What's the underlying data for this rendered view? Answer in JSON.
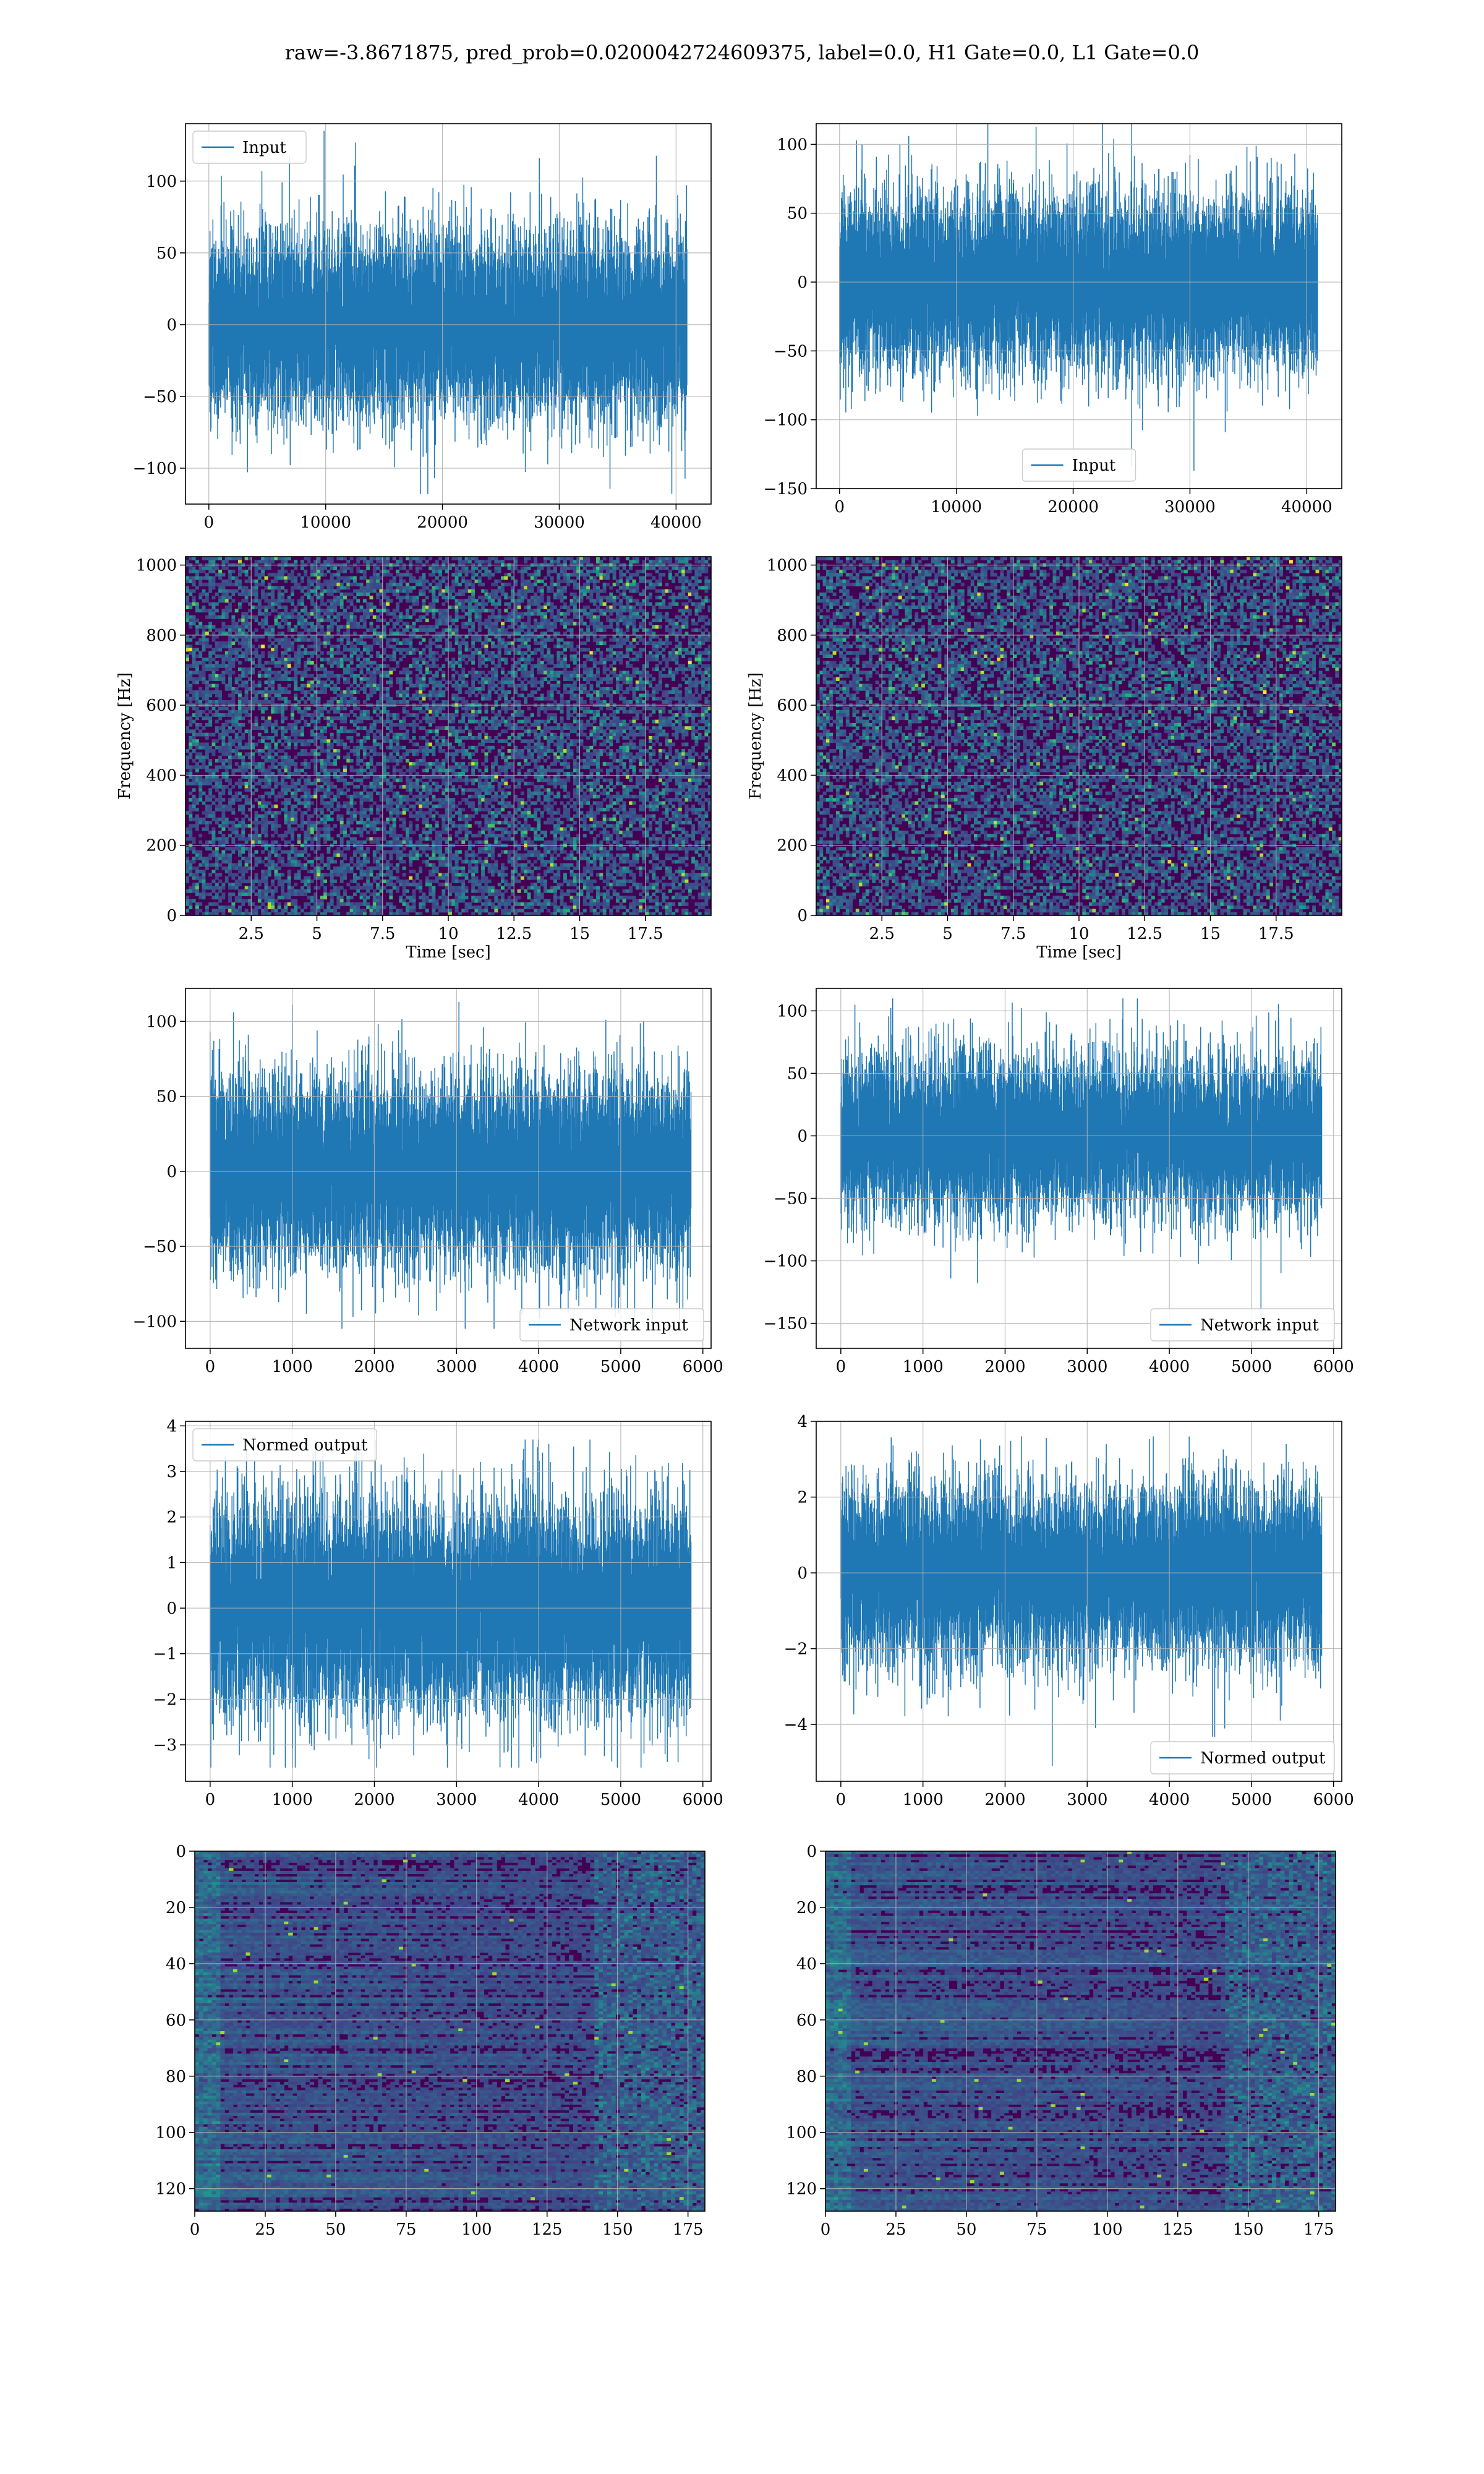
{
  "title": "raw=-3.8671875, pred_prob=0.0200042724609375, label=0.0, H1 Gate=0.0, L1 Gate=0.0",
  "colors": {
    "line": "#1f77b4",
    "grid": "#b0b0b0",
    "viridis": [
      "#440154",
      "#482878",
      "#3e4989",
      "#31688e",
      "#26828e",
      "#1f9e89",
      "#35b779",
      "#6ece58",
      "#b5de2b",
      "#fde725"
    ]
  },
  "chart_data": [
    {
      "id": "r1l",
      "type": "line",
      "title": "",
      "xlabel": "",
      "ylabel": "",
      "xlim": [
        -2000,
        43000
      ],
      "ylim": [
        -125,
        140
      ],
      "xticks": [
        0,
        10000,
        20000,
        30000,
        40000
      ],
      "yticks": [
        -100,
        -50,
        0,
        50,
        100
      ],
      "grid": true,
      "legend": "upper left",
      "series": [
        {
          "name": "Input",
          "n": 40960,
          "rms": 25,
          "min": -118,
          "max": 135
        }
      ]
    },
    {
      "id": "r1r",
      "type": "line",
      "title": "",
      "xlabel": "",
      "ylabel": "",
      "xlim": [
        -2000,
        43000
      ],
      "ylim": [
        -150,
        115
      ],
      "xticks": [
        0,
        10000,
        20000,
        30000,
        40000
      ],
      "yticks": [
        -150,
        -100,
        -50,
        0,
        50,
        100
      ],
      "grid": true,
      "legend": "lower center",
      "series": [
        {
          "name": "Input",
          "n": 40960,
          "rms": 25,
          "min": -137,
          "max": 120
        }
      ]
    },
    {
      "id": "r2l",
      "type": "heatmap",
      "title": "",
      "xlabel": "Time [sec]",
      "ylabel": "Frequency [Hz]",
      "xlim": [
        0,
        20
      ],
      "ylim": [
        0,
        1024
      ],
      "xticks": [
        2.5,
        5.0,
        7.5,
        10.0,
        12.5,
        15.0,
        17.5
      ],
      "yticks": [
        0,
        200,
        400,
        600,
        800,
        1000
      ],
      "grid": true,
      "colormap": "viridis"
    },
    {
      "id": "r2r",
      "type": "heatmap",
      "title": "",
      "xlabel": "Time [sec]",
      "ylabel": "Frequency [Hz]",
      "xlim": [
        0,
        20
      ],
      "ylim": [
        0,
        1024
      ],
      "xticks": [
        2.5,
        5.0,
        7.5,
        10.0,
        12.5,
        15.0,
        17.5
      ],
      "yticks": [
        0,
        200,
        400,
        600,
        800,
        1000
      ],
      "grid": true,
      "colormap": "viridis"
    },
    {
      "id": "r3l",
      "type": "line",
      "title": "",
      "xlabel": "",
      "ylabel": "",
      "xlim": [
        -300,
        6100
      ],
      "ylim": [
        -118,
        122
      ],
      "xticks": [
        0,
        1000,
        2000,
        3000,
        4000,
        5000,
        6000
      ],
      "yticks": [
        -100,
        -50,
        0,
        50,
        100
      ],
      "grid": true,
      "legend": "lower right",
      "series": [
        {
          "name": "Network input",
          "n": 5860,
          "rms": 25,
          "min": -105,
          "max": 113
        }
      ]
    },
    {
      "id": "r3r",
      "type": "line",
      "title": "",
      "xlabel": "",
      "ylabel": "",
      "xlim": [
        -300,
        6100
      ],
      "ylim": [
        -170,
        118
      ],
      "xticks": [
        0,
        1000,
        2000,
        3000,
        4000,
        5000,
        6000
      ],
      "yticks": [
        -150,
        -100,
        -50,
        0,
        50,
        100
      ],
      "grid": true,
      "legend": "lower right",
      "series": [
        {
          "name": "Network input",
          "n": 5860,
          "rms": 25,
          "min": -157,
          "max": 110
        }
      ]
    },
    {
      "id": "r4l",
      "type": "line",
      "title": "",
      "xlabel": "",
      "ylabel": "",
      "xlim": [
        -300,
        6100
      ],
      "ylim": [
        -3.8,
        4.1
      ],
      "xticks": [
        0,
        1000,
        2000,
        3000,
        4000,
        5000,
        6000
      ],
      "yticks": [
        -3,
        -2,
        -1,
        0,
        1,
        2,
        3,
        4
      ],
      "grid": true,
      "legend": "upper left",
      "series": [
        {
          "name": "Normed output",
          "n": 5860,
          "rms": 0.9,
          "min": -3.5,
          "max": 3.7
        }
      ]
    },
    {
      "id": "r4r",
      "type": "line",
      "title": "",
      "xlabel": "",
      "ylabel": "",
      "xlim": [
        -300,
        6100
      ],
      "ylim": [
        -5.5,
        4.0
      ],
      "xticks": [
        0,
        1000,
        2000,
        3000,
        4000,
        5000,
        6000
      ],
      "yticks": [
        -4,
        -2,
        0,
        2,
        4
      ],
      "grid": true,
      "legend": "lower right",
      "series": [
        {
          "name": "Normed output",
          "n": 5860,
          "rms": 0.9,
          "min": -5.1,
          "max": 3.6
        }
      ]
    },
    {
      "id": "r5l",
      "type": "heatmap",
      "title": "",
      "xlabel": "",
      "ylabel": "",
      "xlim": [
        0,
        181
      ],
      "ylim": [
        0,
        128
      ],
      "yinverted": true,
      "xticks": [
        0,
        25,
        50,
        75,
        100,
        125,
        150,
        175
      ],
      "yticks": [
        0,
        20,
        40,
        60,
        80,
        100,
        120
      ],
      "grid": true,
      "colormap": "viridis"
    },
    {
      "id": "r5r",
      "type": "heatmap",
      "title": "",
      "xlabel": "",
      "ylabel": "",
      "xlim": [
        0,
        181
      ],
      "ylim": [
        0,
        128
      ],
      "yinverted": true,
      "xticks": [
        0,
        25,
        50,
        75,
        100,
        125,
        150,
        175
      ],
      "yticks": [
        0,
        20,
        40,
        60,
        80,
        100,
        120
      ],
      "grid": true,
      "colormap": "viridis"
    }
  ]
}
